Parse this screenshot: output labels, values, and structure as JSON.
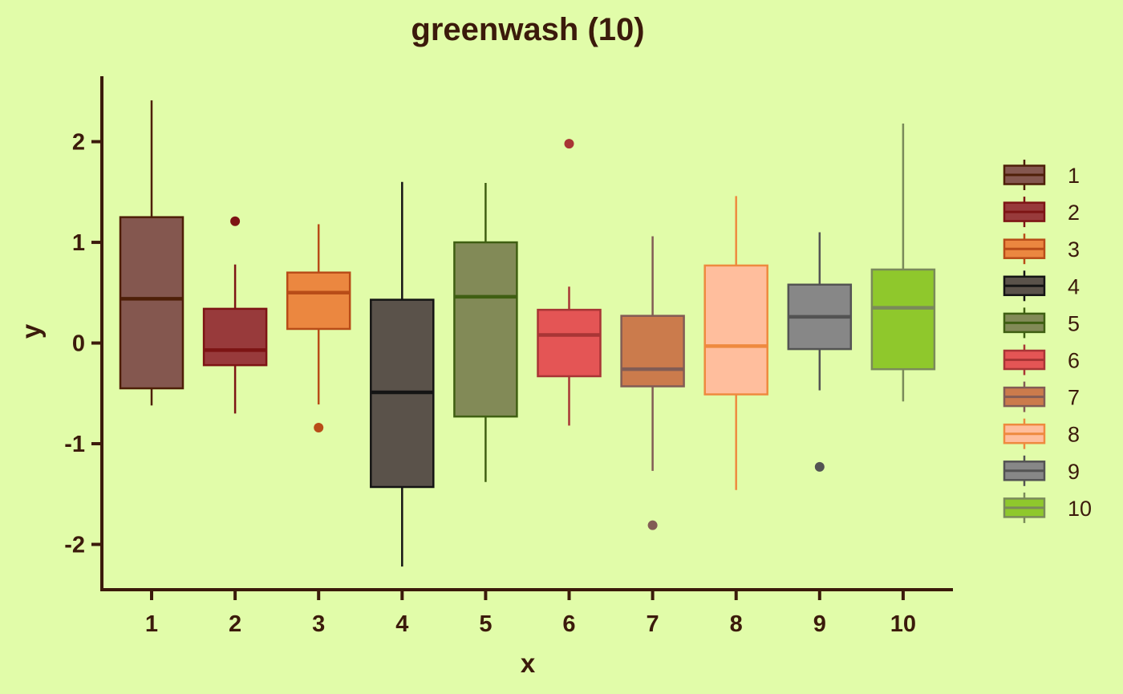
{
  "chart_data": {
    "type": "box",
    "title": "greenwash (10)",
    "xlabel": "x",
    "ylabel": "y",
    "ylim": [
      -2.45,
      2.65
    ],
    "y_ticks": [
      -2,
      -1,
      0,
      1,
      2
    ],
    "y_tick_labels": [
      "-2",
      "-1",
      "0",
      "1",
      "2"
    ],
    "categories": [
      "1",
      "2",
      "3",
      "4",
      "5",
      "6",
      "7",
      "8",
      "9",
      "10"
    ],
    "legend_position": "right",
    "grid": false,
    "colors": {
      "background": "#E1FCA9",
      "axis": "#3B1A0B",
      "text": "#3B1A0B"
    },
    "series": [
      {
        "name": "1",
        "fill": "#84574F",
        "stroke": "#4E1F08",
        "min": -0.62,
        "q1": -0.45,
        "median": 0.44,
        "q3": 1.25,
        "max": 2.41,
        "outliers": []
      },
      {
        "name": "2",
        "fill": "#983A3B",
        "stroke": "#7D1414",
        "min": -0.7,
        "q1": -0.22,
        "median": -0.07,
        "q3": 0.34,
        "max": 0.78,
        "outliers": [
          1.21
        ]
      },
      {
        "name": "3",
        "fill": "#EB8740",
        "stroke": "#B84C18",
        "min": -0.61,
        "q1": 0.14,
        "median": 0.5,
        "q3": 0.7,
        "max": 1.18,
        "outliers": [
          -0.84
        ]
      },
      {
        "name": "4",
        "fill": "#5A524A",
        "stroke": "#141414",
        "min": -2.22,
        "q1": -1.43,
        "median": -0.49,
        "q3": 0.43,
        "max": 1.6,
        "outliers": []
      },
      {
        "name": "5",
        "fill": "#828A57",
        "stroke": "#3F5F12",
        "min": -1.38,
        "q1": -0.73,
        "median": 0.46,
        "q3": 1.0,
        "max": 1.59,
        "outliers": []
      },
      {
        "name": "6",
        "fill": "#E45555",
        "stroke": "#A83535",
        "min": -0.82,
        "q1": -0.33,
        "median": 0.08,
        "q3": 0.33,
        "max": 0.56,
        "outliers": [
          1.98
        ]
      },
      {
        "name": "7",
        "fill": "#CB7B4C",
        "stroke": "#825C55",
        "min": -1.27,
        "q1": -0.43,
        "median": -0.26,
        "q3": 0.27,
        "max": 1.06,
        "outliers": [
          -1.81
        ]
      },
      {
        "name": "8",
        "fill": "#FFBE9D",
        "stroke": "#EE8A3F",
        "min": -1.46,
        "q1": -0.51,
        "median": -0.03,
        "q3": 0.77,
        "max": 1.46,
        "outliers": []
      },
      {
        "name": "9",
        "fill": "#878787",
        "stroke": "#535353",
        "min": -0.47,
        "q1": -0.06,
        "median": 0.26,
        "q3": 0.58,
        "max": 1.1,
        "outliers": [
          -1.23
        ]
      },
      {
        "name": "10",
        "fill": "#8FC82C",
        "stroke": "#7A8A5A",
        "min": -0.58,
        "q1": -0.26,
        "median": 0.35,
        "q3": 0.73,
        "max": 2.18,
        "outliers": []
      }
    ]
  }
}
